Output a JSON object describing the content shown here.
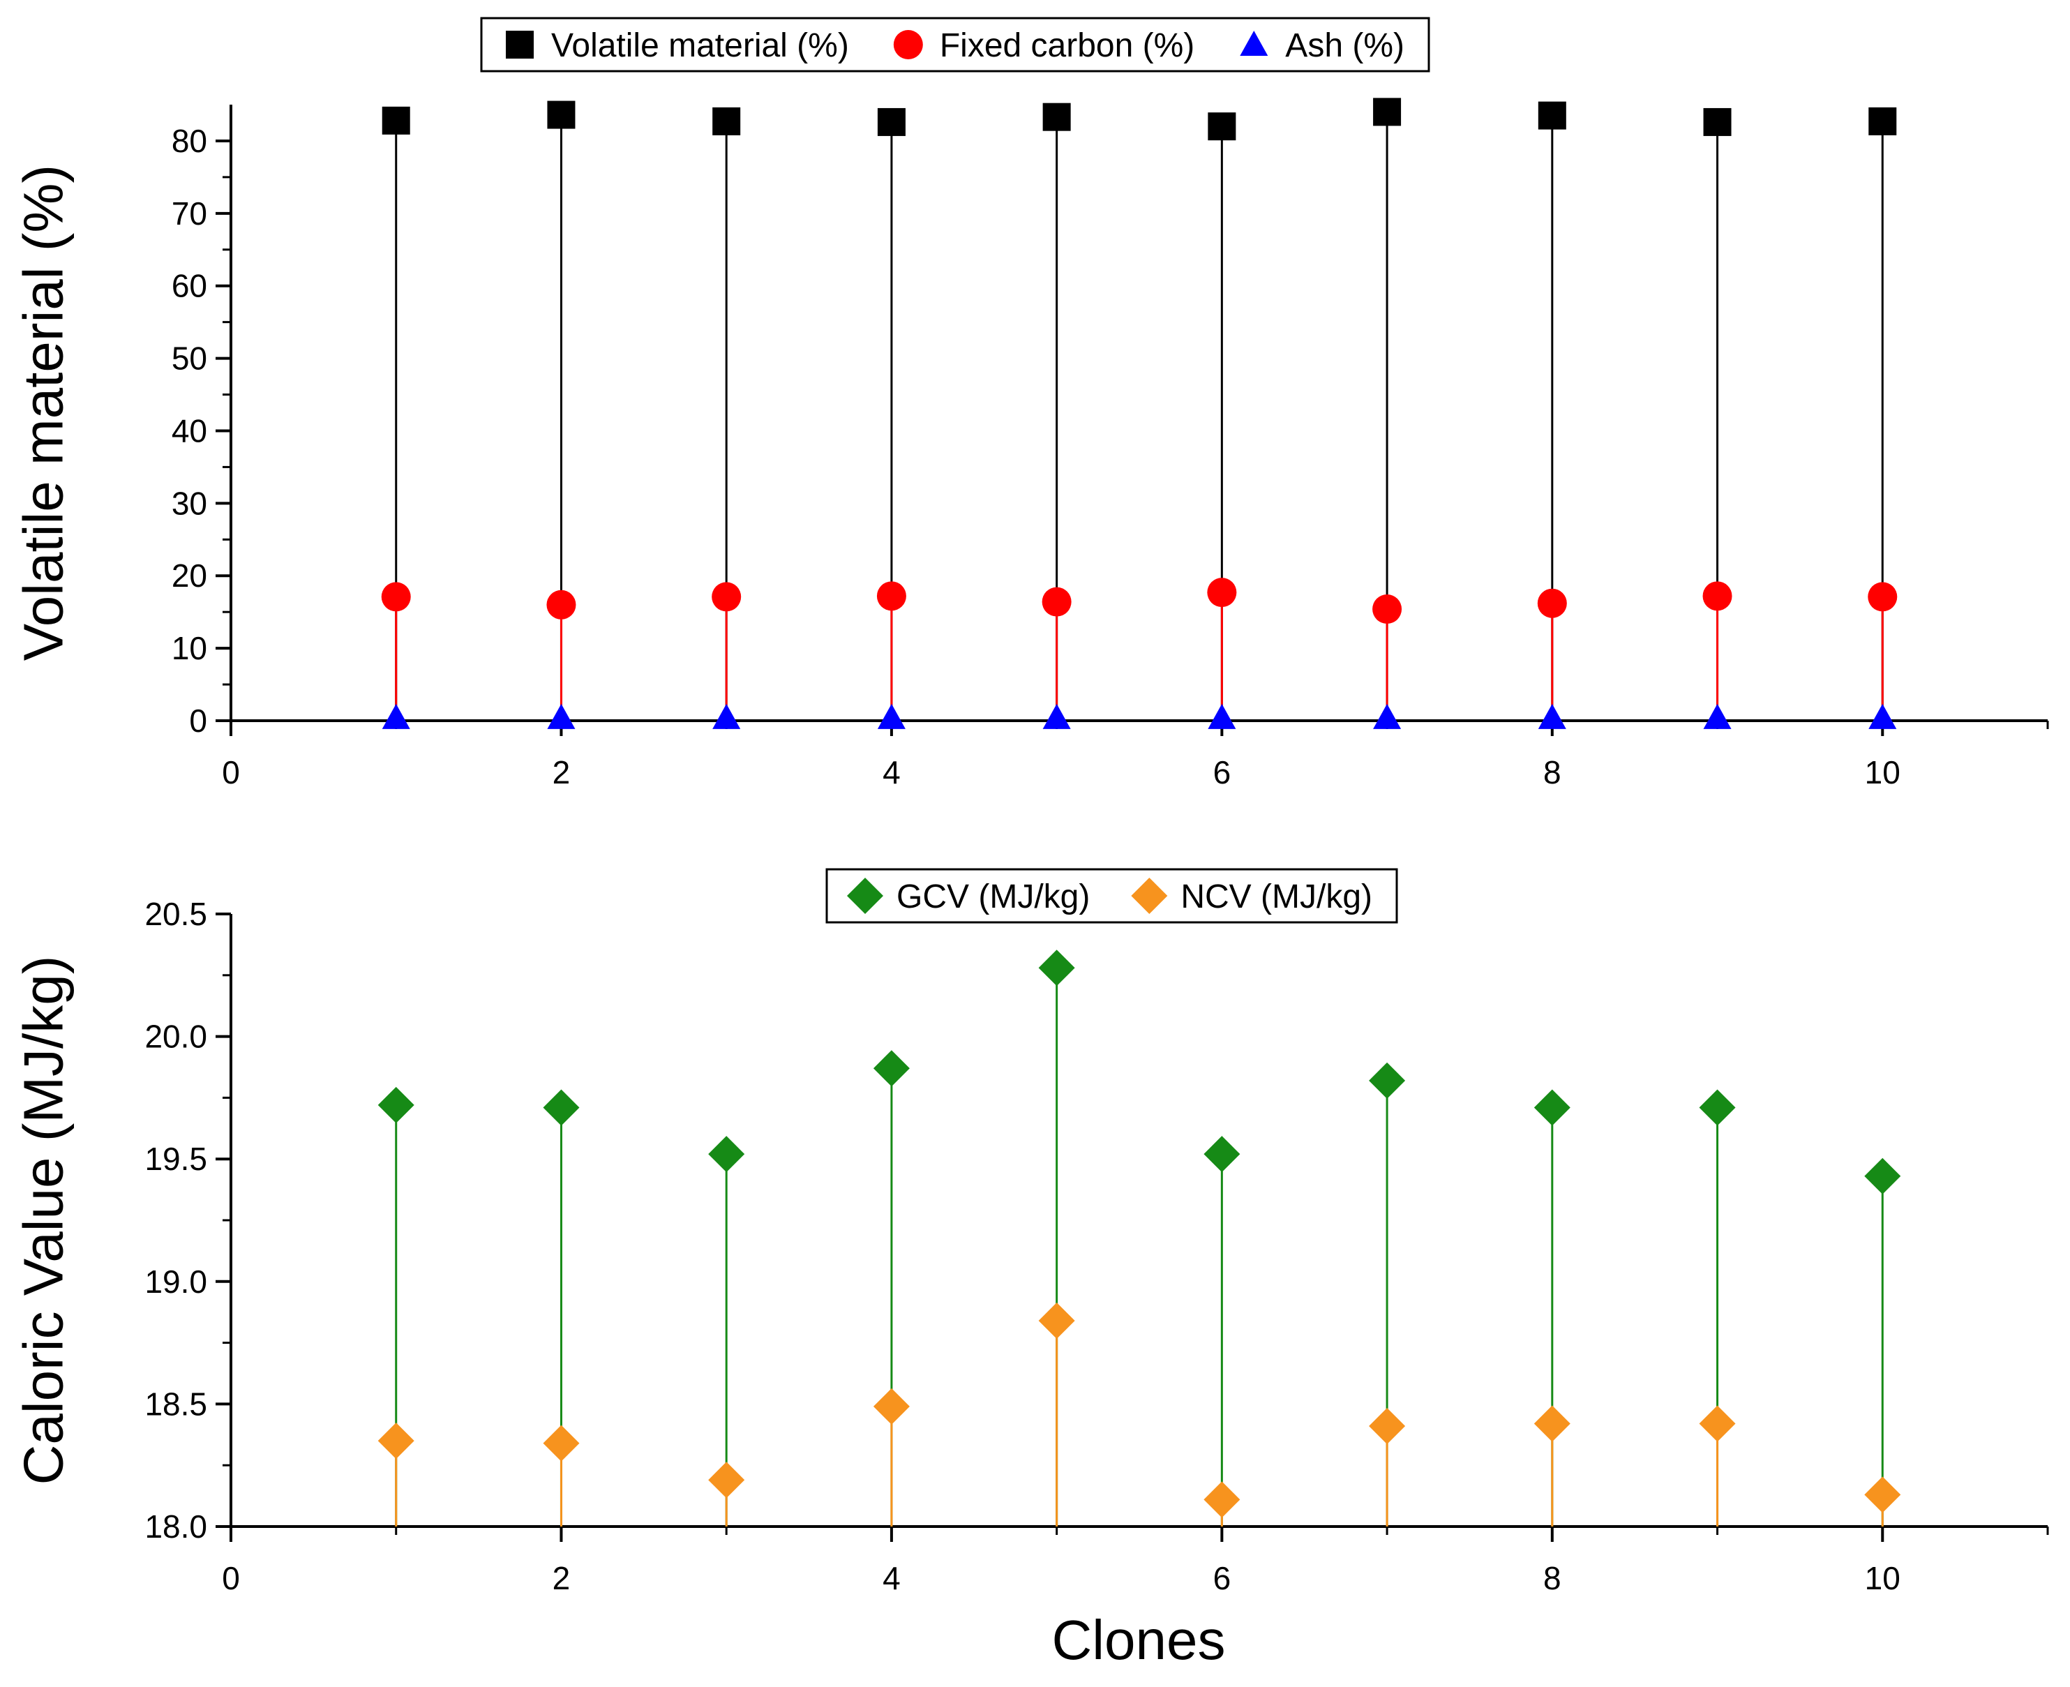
{
  "chart_data": [
    {
      "type": "scatter",
      "style": "drop-lines",
      "title": "",
      "xlabel": "",
      "ylabel": "Volatile material (%)",
      "xlim": [
        0,
        11
      ],
      "ylim": [
        0,
        85
      ],
      "xticks": [
        0,
        2,
        4,
        6,
        8,
        10
      ],
      "yticks": [
        0,
        10,
        20,
        30,
        40,
        50,
        60,
        70,
        80
      ],
      "tick_decimals": 0,
      "legend_position": "top",
      "x": [
        1,
        2,
        3,
        4,
        5,
        6,
        7,
        8,
        9,
        10
      ],
      "series": [
        {
          "name": "Volatile material (%)",
          "marker": "square",
          "color": "#000000",
          "values": [
            82.8,
            83.6,
            82.7,
            82.6,
            83.3,
            82.0,
            84.0,
            83.5,
            82.6,
            82.7
          ]
        },
        {
          "name": "Fixed carbon (%)",
          "marker": "circle",
          "color": "#ff0000",
          "values": [
            17.1,
            16.0,
            17.1,
            17.2,
            16.4,
            17.7,
            15.4,
            16.2,
            17.2,
            17.1
          ]
        },
        {
          "name": "Ash (%)",
          "marker": "triangle",
          "color": "#0000ff",
          "values": [
            0.4,
            0.4,
            0.4,
            0.4,
            0.4,
            0.4,
            0.4,
            0.4,
            0.4,
            0.4
          ]
        }
      ]
    },
    {
      "type": "scatter",
      "style": "drop-lines",
      "title": "",
      "xlabel": "Clones",
      "ylabel": "Caloric Value (MJ/kg)",
      "xlim": [
        0,
        11
      ],
      "ylim": [
        18.0,
        20.5
      ],
      "xticks": [
        0,
        2,
        4,
        6,
        8,
        10
      ],
      "yticks": [
        18.0,
        18.5,
        19.0,
        19.5,
        20.0,
        20.5
      ],
      "tick_decimals": 1,
      "legend_position": "top",
      "x": [
        1,
        2,
        3,
        4,
        5,
        6,
        7,
        8,
        9,
        10
      ],
      "series": [
        {
          "name": "GCV (MJ/kg)",
          "marker": "diamond",
          "color": "#168a16",
          "values": [
            19.72,
            19.71,
            19.52,
            19.87,
            20.28,
            19.52,
            19.82,
            19.71,
            19.71,
            19.43
          ]
        },
        {
          "name": "NCV (MJ/kg)",
          "marker": "diamond",
          "color": "#f7931e",
          "values": [
            18.35,
            18.34,
            18.19,
            18.49,
            18.84,
            18.11,
            18.41,
            18.42,
            18.42,
            18.13
          ]
        }
      ]
    }
  ]
}
